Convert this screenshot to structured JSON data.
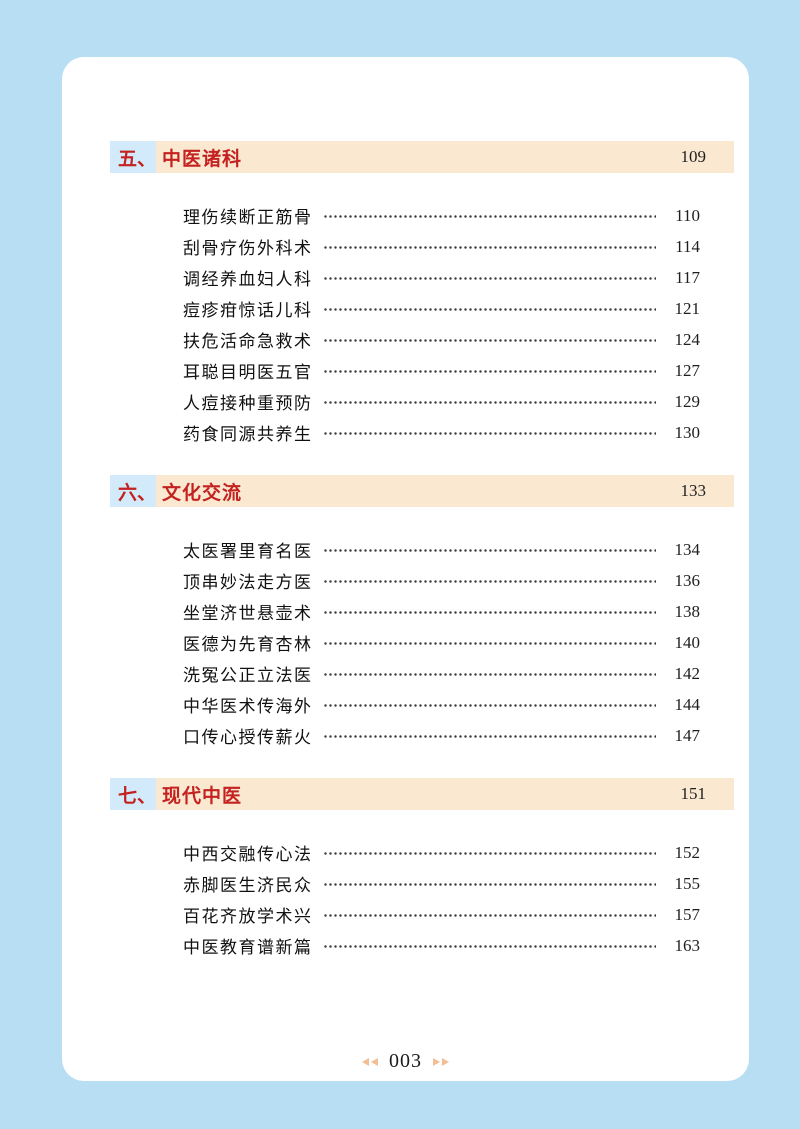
{
  "colors": {
    "page_background": "#b8def4",
    "card_background": "#ffffff",
    "section_bar_background": "#fae8d0",
    "section_number_background": "#d2eaf9",
    "section_text": "#c32220",
    "body_text": "#111111",
    "footer_arrow": "#f2be93"
  },
  "sections": [
    {
      "number": "五、",
      "title": "中医诸科",
      "page": "109",
      "items": [
        {
          "title": "理伤续断正筋骨",
          "page": "110"
        },
        {
          "title": "刮骨疗伤外科术",
          "page": "114"
        },
        {
          "title": "调经养血妇人科",
          "page": "117"
        },
        {
          "title": "痘疹疳惊话儿科",
          "page": "121"
        },
        {
          "title": "扶危活命急救术",
          "page": "124"
        },
        {
          "title": "耳聪目明医五官",
          "page": "127"
        },
        {
          "title": "人痘接种重预防",
          "page": "129"
        },
        {
          "title": "药食同源共养生",
          "page": "130"
        }
      ]
    },
    {
      "number": "六、",
      "title": "文化交流",
      "page": "133",
      "items": [
        {
          "title": "太医署里育名医",
          "page": "134"
        },
        {
          "title": "顶串妙法走方医",
          "page": "136"
        },
        {
          "title": "坐堂济世悬壶术",
          "page": "138"
        },
        {
          "title": "医德为先育杏林",
          "page": "140"
        },
        {
          "title": "洗冤公正立法医",
          "page": "142"
        },
        {
          "title": "中华医术传海外",
          "page": "144"
        },
        {
          "title": "口传心授传薪火",
          "page": "147"
        }
      ]
    },
    {
      "number": "七、",
      "title": "现代中医",
      "page": "151",
      "items": [
        {
          "title": "中西交融传心法",
          "page": "152"
        },
        {
          "title": "赤脚医生济民众",
          "page": "155"
        },
        {
          "title": "百花齐放学术兴",
          "page": "157"
        },
        {
          "title": "中医教育谱新篇",
          "page": "163"
        }
      ]
    }
  ],
  "footer": {
    "page_number": "003"
  }
}
